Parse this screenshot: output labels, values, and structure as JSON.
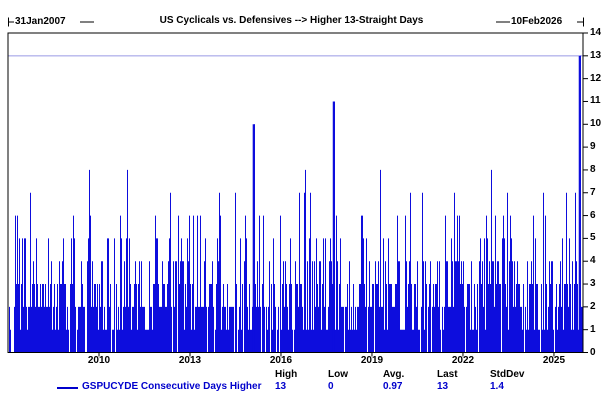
{
  "chart_data": {
    "type": "bar",
    "title": "US Cyclicals vs. Defensives --> Higher 13-Straight Days",
    "x_start_label": "31Jan2007",
    "x_end_label": "10Feb2026",
    "series_name": "GSPUCYDE Consecutive Days Higher",
    "xlabel": "",
    "ylabel": "",
    "ylim": [
      0,
      14
    ],
    "y_ticks": [
      0,
      1,
      2,
      3,
      4,
      5,
      6,
      7,
      8,
      9,
      10,
      11,
      12,
      13,
      14
    ],
    "x_ticks": [
      2010,
      2013,
      2016,
      2019,
      2022,
      2025
    ],
    "x_range_years": [
      2007.03,
      2026.11
    ],
    "reference_line_y": 13,
    "grid": false,
    "legend_position": "bottom",
    "bar_color": "#0d0ddd",
    "reference_line_color": "#b4b4ec",
    "value_text_color": "#0000cc",
    "axis_color": "#000000",
    "stats_headers": [
      "High",
      "Low",
      "Avg.",
      "Last",
      "StdDev"
    ],
    "stats_values": [
      "13",
      "0",
      "0.97",
      "13",
      "1.4"
    ],
    "notable_peaks": [
      {
        "year": 2009.13,
        "value": 6
      },
      {
        "year": 2009.66,
        "value": 8
      },
      {
        "year": 2010.68,
        "value": 6
      },
      {
        "year": 2010.91,
        "value": 8
      },
      {
        "year": 2012.96,
        "value": 6
      },
      {
        "year": 2014.47,
        "value": 7
      },
      {
        "year": 2015.1,
        "value": 10
      },
      {
        "year": 2016.6,
        "value": 7
      },
      {
        "year": 2016.8,
        "value": 8
      },
      {
        "year": 2017.74,
        "value": 11
      },
      {
        "year": 2019.26,
        "value": 8
      },
      {
        "year": 2020.65,
        "value": 7
      },
      {
        "year": 2021.7,
        "value": 7
      },
      {
        "year": 2022.92,
        "value": 8
      },
      {
        "year": 2023.45,
        "value": 7
      },
      {
        "year": 2024.64,
        "value": 7
      },
      {
        "year": 2025.4,
        "value": 7
      },
      {
        "year": 2025.68,
        "value": 7
      },
      {
        "year": 2025.85,
        "value": 13
      }
    ],
    "noise_texture": {
      "seed": 20070131,
      "column_height_weights": [
        [
          0,
          6
        ],
        [
          1,
          18
        ],
        [
          2,
          28
        ],
        [
          3,
          22
        ],
        [
          4,
          14
        ],
        [
          5,
          8
        ],
        [
          6,
          3
        ],
        [
          7,
          1
        ]
      ]
    }
  }
}
